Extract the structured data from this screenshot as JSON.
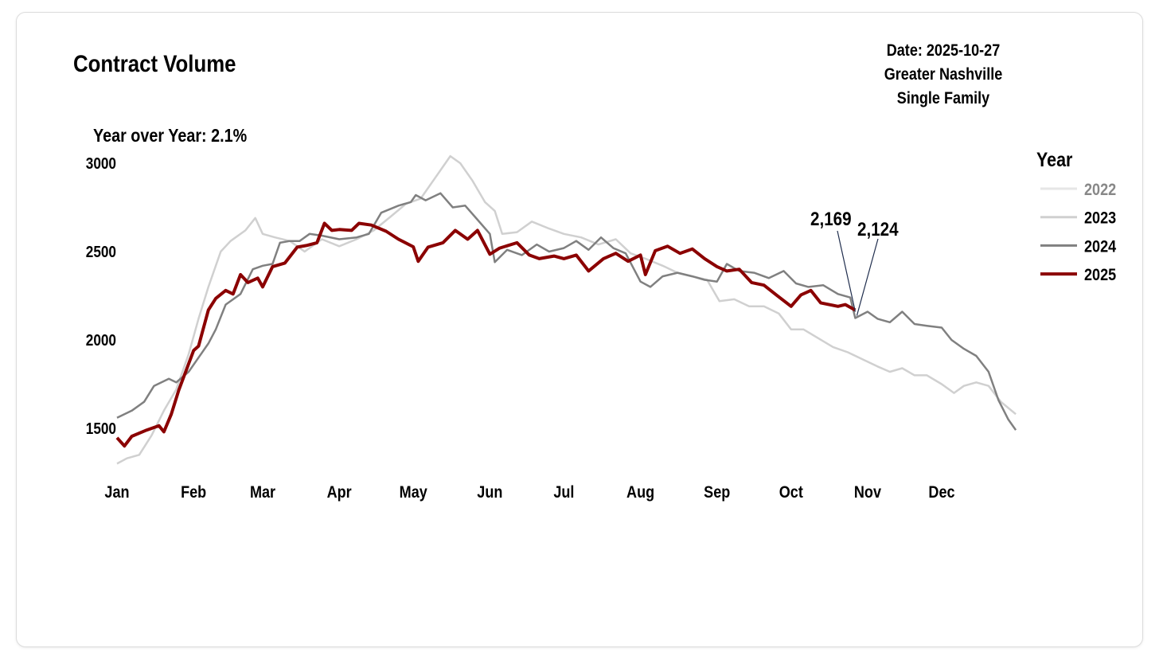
{
  "header": {
    "title": "Contract Volume",
    "yoy": "Year over Year: 2.1%",
    "date": "Date: 2025-10-27",
    "region": "Greater Nashville",
    "property_type": "Single Family"
  },
  "chart_data": {
    "type": "line",
    "title": "Contract Volume",
    "xlabel": "",
    "ylabel": "",
    "x_ticks": [
      "Jan",
      "Feb",
      "Mar",
      "Apr",
      "May",
      "Jun",
      "Jul",
      "Aug",
      "Sep",
      "Oct",
      "Nov",
      "Dec"
    ],
    "y_ticks": [
      1500,
      2000,
      2500,
      3000
    ],
    "ylim": [
      1250,
      3050
    ],
    "grid": false,
    "legend": {
      "title": "Year",
      "placement": "right"
    },
    "annotations": [
      {
        "text": "2,169",
        "series": "2025",
        "x": "10-27",
        "y": 2169
      },
      {
        "text": "2,124",
        "series": "2024",
        "x": "10-27",
        "y": 2124
      }
    ],
    "series": [
      {
        "name": "2022",
        "color": "#e6e6e6",
        "label_color": "#888888",
        "points": []
      },
      {
        "name": "2023",
        "color": "#d0d0d0",
        "label_color": "#000000",
        "points": [
          [
            "01-01",
            1300
          ],
          [
            "01-05",
            1330
          ],
          [
            "01-10",
            1350
          ],
          [
            "01-15",
            1460
          ],
          [
            "01-20",
            1600
          ],
          [
            "01-25",
            1720
          ],
          [
            "01-30",
            1920
          ],
          [
            "02-03",
            2120
          ],
          [
            "02-07",
            2300
          ],
          [
            "02-12",
            2500
          ],
          [
            "02-16",
            2560
          ],
          [
            "02-22",
            2620
          ],
          [
            "02-26",
            2690
          ],
          [
            "03-01",
            2600
          ],
          [
            "03-06",
            2580
          ],
          [
            "03-12",
            2560
          ],
          [
            "03-18",
            2500
          ],
          [
            "03-25",
            2570
          ],
          [
            "04-01",
            2530
          ],
          [
            "04-08",
            2570
          ],
          [
            "04-15",
            2620
          ],
          [
            "04-22",
            2700
          ],
          [
            "04-28",
            2770
          ],
          [
            "05-04",
            2800
          ],
          [
            "05-10",
            2920
          ],
          [
            "05-16",
            3040
          ],
          [
            "05-20",
            3000
          ],
          [
            "05-25",
            2900
          ],
          [
            "05-30",
            2780
          ],
          [
            "06-03",
            2730
          ],
          [
            "06-06",
            2600
          ],
          [
            "06-12",
            2610
          ],
          [
            "06-18",
            2670
          ],
          [
            "06-25",
            2630
          ],
          [
            "07-01",
            2600
          ],
          [
            "07-08",
            2580
          ],
          [
            "07-15",
            2540
          ],
          [
            "07-22",
            2570
          ],
          [
            "07-28",
            2490
          ],
          [
            "08-03",
            2460
          ],
          [
            "08-10",
            2420
          ],
          [
            "08-16",
            2380
          ],
          [
            "08-22",
            2360
          ],
          [
            "08-28",
            2340
          ],
          [
            "09-02",
            2220
          ],
          [
            "09-08",
            2230
          ],
          [
            "09-14",
            2190
          ],
          [
            "09-20",
            2190
          ],
          [
            "09-26",
            2150
          ],
          [
            "10-01",
            2060
          ],
          [
            "10-06",
            2060
          ],
          [
            "10-12",
            2010
          ],
          [
            "10-18",
            1960
          ],
          [
            "10-24",
            1930
          ],
          [
            "10-30",
            1890
          ],
          [
            "11-05",
            1850
          ],
          [
            "11-10",
            1820
          ],
          [
            "11-15",
            1840
          ],
          [
            "11-20",
            1800
          ],
          [
            "11-25",
            1800
          ],
          [
            "12-01",
            1750
          ],
          [
            "12-06",
            1700
          ],
          [
            "12-10",
            1740
          ],
          [
            "12-15",
            1760
          ],
          [
            "12-20",
            1740
          ],
          [
            "12-25",
            1650
          ],
          [
            "12-31",
            1580
          ]
        ]
      },
      {
        "name": "2024",
        "color": "#808080",
        "label_color": "#000000",
        "points": [
          [
            "01-01",
            1560
          ],
          [
            "01-07",
            1600
          ],
          [
            "01-12",
            1650
          ],
          [
            "01-16",
            1740
          ],
          [
            "01-22",
            1780
          ],
          [
            "01-25",
            1760
          ],
          [
            "01-30",
            1820
          ],
          [
            "02-03",
            1900
          ],
          [
            "02-07",
            1980
          ],
          [
            "02-10",
            2060
          ],
          [
            "02-14",
            2200
          ],
          [
            "02-20",
            2260
          ],
          [
            "02-25",
            2400
          ],
          [
            "03-01",
            2420
          ],
          [
            "03-05",
            2430
          ],
          [
            "03-08",
            2550
          ],
          [
            "03-12",
            2560
          ],
          [
            "03-16",
            2560
          ],
          [
            "03-20",
            2600
          ],
          [
            "03-25",
            2590
          ],
          [
            "04-01",
            2570
          ],
          [
            "04-08",
            2580
          ],
          [
            "04-13",
            2600
          ],
          [
            "04-18",
            2720
          ],
          [
            "04-25",
            2760
          ],
          [
            "04-30",
            2780
          ],
          [
            "05-02",
            2820
          ],
          [
            "05-06",
            2790
          ],
          [
            "05-12",
            2830
          ],
          [
            "05-17",
            2750
          ],
          [
            "05-22",
            2760
          ],
          [
            "05-27",
            2680
          ],
          [
            "06-01",
            2600
          ],
          [
            "06-03",
            2440
          ],
          [
            "06-08",
            2510
          ],
          [
            "06-14",
            2480
          ],
          [
            "06-20",
            2540
          ],
          [
            "06-25",
            2500
          ],
          [
            "07-01",
            2520
          ],
          [
            "07-06",
            2560
          ],
          [
            "07-11",
            2510
          ],
          [
            "07-16",
            2580
          ],
          [
            "07-21",
            2520
          ],
          [
            "07-26",
            2490
          ],
          [
            "08-01",
            2330
          ],
          [
            "08-05",
            2300
          ],
          [
            "08-10",
            2360
          ],
          [
            "08-16",
            2380
          ],
          [
            "08-22",
            2360
          ],
          [
            "08-27",
            2340
          ],
          [
            "09-01",
            2330
          ],
          [
            "09-05",
            2430
          ],
          [
            "09-10",
            2390
          ],
          [
            "09-16",
            2380
          ],
          [
            "09-22",
            2350
          ],
          [
            "09-28",
            2390
          ],
          [
            "10-03",
            2320
          ],
          [
            "10-08",
            2300
          ],
          [
            "10-14",
            2310
          ],
          [
            "10-20",
            2260
          ],
          [
            "10-25",
            2240
          ],
          [
            "10-27",
            2124
          ],
          [
            "11-01",
            2160
          ],
          [
            "11-05",
            2120
          ],
          [
            "11-10",
            2100
          ],
          [
            "11-15",
            2160
          ],
          [
            "11-20",
            2090
          ],
          [
            "11-25",
            2080
          ],
          [
            "12-01",
            2070
          ],
          [
            "12-05",
            2000
          ],
          [
            "12-10",
            1950
          ],
          [
            "12-15",
            1910
          ],
          [
            "12-20",
            1820
          ],
          [
            "12-24",
            1660
          ],
          [
            "12-28",
            1550
          ],
          [
            "12-31",
            1490
          ]
        ]
      },
      {
        "name": "2025",
        "color": "#8b0000",
        "label_color": "#000000",
        "points": [
          [
            "01-01",
            1447
          ],
          [
            "01-04",
            1400
          ],
          [
            "01-07",
            1455
          ],
          [
            "01-13",
            1490
          ],
          [
            "01-18",
            1515
          ],
          [
            "01-20",
            1480
          ],
          [
            "01-23",
            1580
          ],
          [
            "01-26",
            1715
          ],
          [
            "02-01",
            1940
          ],
          [
            "02-03",
            1965
          ],
          [
            "02-07",
            2170
          ],
          [
            "02-10",
            2235
          ],
          [
            "02-14",
            2280
          ],
          [
            "02-17",
            2260
          ],
          [
            "02-20",
            2370
          ],
          [
            "02-23",
            2325
          ],
          [
            "02-27",
            2350
          ],
          [
            "03-01",
            2300
          ],
          [
            "03-05",
            2415
          ],
          [
            "03-10",
            2435
          ],
          [
            "03-15",
            2525
          ],
          [
            "03-19",
            2535
          ],
          [
            "03-23",
            2550
          ],
          [
            "03-26",
            2660
          ],
          [
            "03-29",
            2620
          ],
          [
            "04-01",
            2625
          ],
          [
            "04-06",
            2620
          ],
          [
            "04-09",
            2660
          ],
          [
            "04-14",
            2650
          ],
          [
            "04-20",
            2615
          ],
          [
            "04-25",
            2570
          ],
          [
            "05-01",
            2527
          ],
          [
            "05-03",
            2445
          ],
          [
            "05-07",
            2525
          ],
          [
            "05-13",
            2550
          ],
          [
            "05-18",
            2620
          ],
          [
            "05-23",
            2570
          ],
          [
            "05-27",
            2620
          ],
          [
            "06-01",
            2485
          ],
          [
            "06-05",
            2520
          ],
          [
            "06-12",
            2550
          ],
          [
            "06-17",
            2480
          ],
          [
            "06-21",
            2460
          ],
          [
            "06-27",
            2475
          ],
          [
            "07-01",
            2460
          ],
          [
            "07-06",
            2480
          ],
          [
            "07-11",
            2390
          ],
          [
            "07-17",
            2460
          ],
          [
            "07-22",
            2490
          ],
          [
            "07-27",
            2445
          ],
          [
            "08-01",
            2480
          ],
          [
            "08-03",
            2370
          ],
          [
            "08-07",
            2505
          ],
          [
            "08-12",
            2530
          ],
          [
            "08-17",
            2490
          ],
          [
            "08-22",
            2515
          ],
          [
            "08-27",
            2460
          ],
          [
            "09-01",
            2415
          ],
          [
            "09-05",
            2390
          ],
          [
            "09-10",
            2400
          ],
          [
            "09-15",
            2325
          ],
          [
            "09-20",
            2310
          ],
          [
            "09-25",
            2255
          ],
          [
            "10-01",
            2190
          ],
          [
            "10-05",
            2255
          ],
          [
            "10-09",
            2280
          ],
          [
            "10-13",
            2210
          ],
          [
            "10-20",
            2190
          ],
          [
            "10-23",
            2200
          ],
          [
            "10-27",
            2169
          ]
        ]
      }
    ]
  }
}
